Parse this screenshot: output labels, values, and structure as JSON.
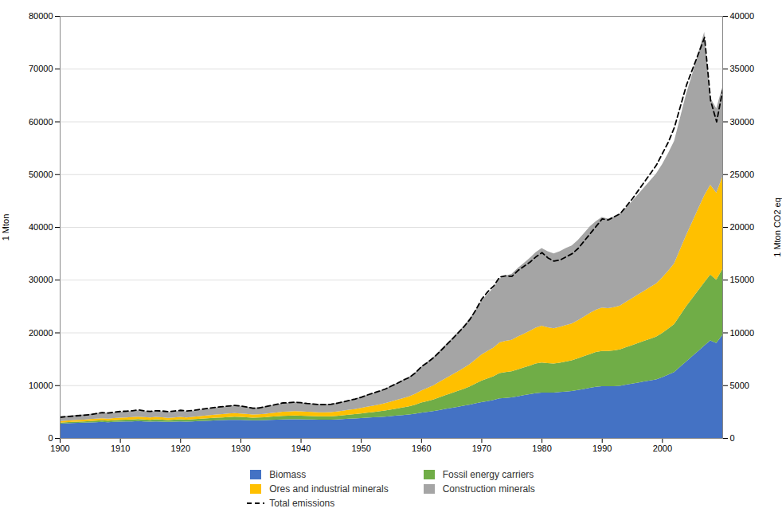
{
  "chart_data": {
    "type": "area",
    "stacked": true,
    "x": [
      1900,
      1901,
      1902,
      1903,
      1904,
      1905,
      1906,
      1907,
      1908,
      1909,
      1910,
      1911,
      1912,
      1913,
      1914,
      1915,
      1916,
      1917,
      1918,
      1919,
      1920,
      1921,
      1922,
      1923,
      1924,
      1925,
      1926,
      1927,
      1928,
      1929,
      1930,
      1931,
      1932,
      1933,
      1934,
      1935,
      1936,
      1937,
      1938,
      1939,
      1940,
      1941,
      1942,
      1943,
      1944,
      1945,
      1946,
      1947,
      1948,
      1949,
      1950,
      1951,
      1952,
      1953,
      1954,
      1955,
      1956,
      1957,
      1958,
      1959,
      1960,
      1961,
      1962,
      1963,
      1964,
      1965,
      1966,
      1967,
      1968,
      1969,
      1970,
      1971,
      1972,
      1973,
      1974,
      1975,
      1976,
      1977,
      1978,
      1979,
      1980,
      1981,
      1982,
      1983,
      1984,
      1985,
      1986,
      1987,
      1988,
      1989,
      1990,
      1991,
      1992,
      1993,
      1994,
      1995,
      1996,
      1997,
      1998,
      1999,
      2000,
      2001,
      2002,
      2003,
      2004,
      2005,
      2006,
      2007,
      2008,
      2009,
      2010
    ],
    "xlim": [
      1900,
      2010
    ],
    "xticks": [
      1900,
      1910,
      1920,
      1930,
      1940,
      1950,
      1960,
      1970,
      1980,
      1990,
      2000
    ],
    "ylabel": "1 Mton",
    "ylim": [
      0,
      80000
    ],
    "yticks": [
      0,
      10000,
      20000,
      30000,
      40000,
      50000,
      60000,
      70000,
      80000
    ],
    "y2label": "1 Mton CO2 eq",
    "y2lim": [
      0,
      40000
    ],
    "y2ticks": [
      0,
      5000,
      10000,
      15000,
      20000,
      25000,
      30000,
      35000,
      40000
    ],
    "grid": true,
    "legend": "bottom",
    "series": [
      {
        "name": "Biomass",
        "type": "area",
        "color": "#4472C4",
        "values": [
          2700,
          2760,
          2820,
          2880,
          2900,
          2950,
          3000,
          3050,
          3000,
          3050,
          3100,
          3120,
          3150,
          3200,
          3150,
          3100,
          3150,
          3100,
          3050,
          3100,
          3150,
          3100,
          3150,
          3200,
          3250,
          3300,
          3350,
          3380,
          3420,
          3450,
          3430,
          3400,
          3350,
          3370,
          3400,
          3440,
          3480,
          3520,
          3540,
          3560,
          3550,
          3520,
          3500,
          3480,
          3470,
          3480,
          3520,
          3580,
          3650,
          3700,
          3780,
          3850,
          3920,
          3980,
          4050,
          4150,
          4250,
          4350,
          4450,
          4600,
          4800,
          4950,
          5100,
          5300,
          5500,
          5700,
          5900,
          6100,
          6300,
          6550,
          6800,
          7000,
          7200,
          7500,
          7600,
          7700,
          7900,
          8100,
          8300,
          8500,
          8600,
          8600,
          8600,
          8700,
          8800,
          8900,
          9100,
          9300,
          9500,
          9700,
          9800,
          9800,
          9800,
          9900,
          10100,
          10300,
          10500,
          10700,
          10900,
          11100,
          11500,
          12000,
          12500,
          13500,
          14500,
          15500,
          16500,
          17500,
          18500,
          18000,
          19500
        ]
      },
      {
        "name": "Fossil energy carriers",
        "type": "area",
        "color": "#70AD47",
        "values": [
          200,
          210,
          220,
          230,
          240,
          260,
          280,
          300,
          290,
          310,
          330,
          340,
          360,
          380,
          360,
          350,
          380,
          370,
          350,
          360,
          380,
          360,
          380,
          410,
          440,
          470,
          500,
          520,
          550,
          580,
          560,
          530,
          500,
          510,
          540,
          580,
          620,
          660,
          670,
          690,
          680,
          670,
          650,
          640,
          640,
          650,
          680,
          720,
          770,
          810,
          870,
          940,
          1000,
          1070,
          1150,
          1250,
          1350,
          1450,
          1550,
          1700,
          1900,
          2050,
          2200,
          2400,
          2600,
          2800,
          3000,
          3200,
          3450,
          3750,
          4050,
          4300,
          4500,
          4800,
          4900,
          4950,
          5100,
          5250,
          5400,
          5600,
          5700,
          5600,
          5500,
          5550,
          5700,
          5800,
          6000,
          6200,
          6400,
          6600,
          6700,
          6700,
          6800,
          6900,
          7100,
          7300,
          7500,
          7700,
          7900,
          8100,
          8400,
          8700,
          9100,
          9800,
          10500,
          11000,
          11500,
          12000,
          12500,
          12000,
          12500
        ]
      },
      {
        "name": "Ores and industrial minerals",
        "type": "area",
        "color": "#FFC000",
        "values": [
          300,
          310,
          320,
          330,
          340,
          360,
          380,
          400,
          380,
          400,
          420,
          430,
          450,
          470,
          440,
          430,
          460,
          440,
          420,
          440,
          470,
          440,
          460,
          500,
          530,
          560,
          600,
          630,
          660,
          700,
          670,
          630,
          590,
          600,
          640,
          690,
          740,
          790,
          800,
          830,
          820,
          800,
          780,
          760,
          760,
          780,
          820,
          870,
          930,
          980,
          1050,
          1140,
          1210,
          1300,
          1390,
          1510,
          1630,
          1760,
          1880,
          2070,
          2300,
          2490,
          2680,
          2940,
          3180,
          3430,
          3680,
          3930,
          4220,
          4580,
          4950,
          5200,
          5450,
          5800,
          5900,
          5950,
          6200,
          6400,
          6600,
          6800,
          7000,
          6800,
          6700,
          6800,
          6900,
          7000,
          7200,
          7500,
          7800,
          8000,
          8200,
          8100,
          8200,
          8300,
          8600,
          8900,
          9200,
          9500,
          9800,
          10100,
          10500,
          11000,
          11500,
          12500,
          13500,
          14500,
          15500,
          16500,
          17000,
          16500,
          17500
        ]
      },
      {
        "name": "Construction minerals",
        "type": "area",
        "color": "#A5A5A5",
        "values": [
          900,
          920,
          940,
          960,
          980,
          1000,
          1050,
          1100,
          1050,
          1080,
          1120,
          1140,
          1160,
          1200,
          1150,
          1120,
          1160,
          1130,
          1080,
          1120,
          1170,
          1120,
          1150,
          1200,
          1250,
          1300,
          1360,
          1400,
          1450,
          1500,
          1470,
          1400,
          1320,
          1340,
          1400,
          1470,
          1550,
          1630,
          1660,
          1710,
          1680,
          1640,
          1590,
          1560,
          1550,
          1580,
          1650,
          1750,
          1870,
          1960,
          2100,
          2260,
          2400,
          2570,
          2740,
          2980,
          3220,
          3480,
          3730,
          4100,
          4560,
          4950,
          5340,
          5880,
          6380,
          6880,
          7420,
          7960,
          8580,
          9330,
          10200,
          10800,
          11350,
          12100,
          12400,
          12500,
          13000,
          13400,
          13800,
          14300,
          14700,
          14400,
          14200,
          14350,
          14600,
          14800,
          15200,
          15800,
          16400,
          16800,
          17200,
          17000,
          17200,
          17400,
          17900,
          18400,
          19000,
          19600,
          20200,
          20800,
          21500,
          22300,
          23200,
          25000,
          26800,
          28000,
          29500,
          31000,
          16500,
          16000,
          17000
        ]
      },
      {
        "name": "Total emissions",
        "type": "line",
        "axis": "y2",
        "color": "#000000",
        "line_style": "dashed",
        "values": [
          2000,
          2050,
          2100,
          2150,
          2200,
          2250,
          2350,
          2450,
          2400,
          2480,
          2550,
          2580,
          2620,
          2700,
          2600,
          2560,
          2620,
          2590,
          2530,
          2590,
          2660,
          2590,
          2640,
          2730,
          2800,
          2880,
          2960,
          3010,
          3070,
          3130,
          3070,
          2970,
          2860,
          2880,
          2990,
          3110,
          3230,
          3360,
          3380,
          3430,
          3380,
          3310,
          3260,
          3210,
          3200,
          3230,
          3330,
          3460,
          3600,
          3730,
          3900,
          4110,
          4290,
          4480,
          4680,
          4960,
          5230,
          5530,
          5780,
          6220,
          6800,
          7200,
          7650,
          8200,
          8780,
          9350,
          9950,
          10550,
          11250,
          12150,
          13200,
          13900,
          14450,
          15300,
          15400,
          15350,
          15900,
          16300,
          16700,
          17200,
          17600,
          17100,
          16800,
          16900,
          17200,
          17500,
          18000,
          18700,
          19400,
          20100,
          20800,
          20700,
          21000,
          21300,
          22000,
          22700,
          23500,
          24300,
          25100,
          25900,
          27000,
          28100,
          29500,
          31500,
          33500,
          35000,
          36500,
          38000,
          32000,
          30000,
          33000
        ]
      }
    ]
  }
}
